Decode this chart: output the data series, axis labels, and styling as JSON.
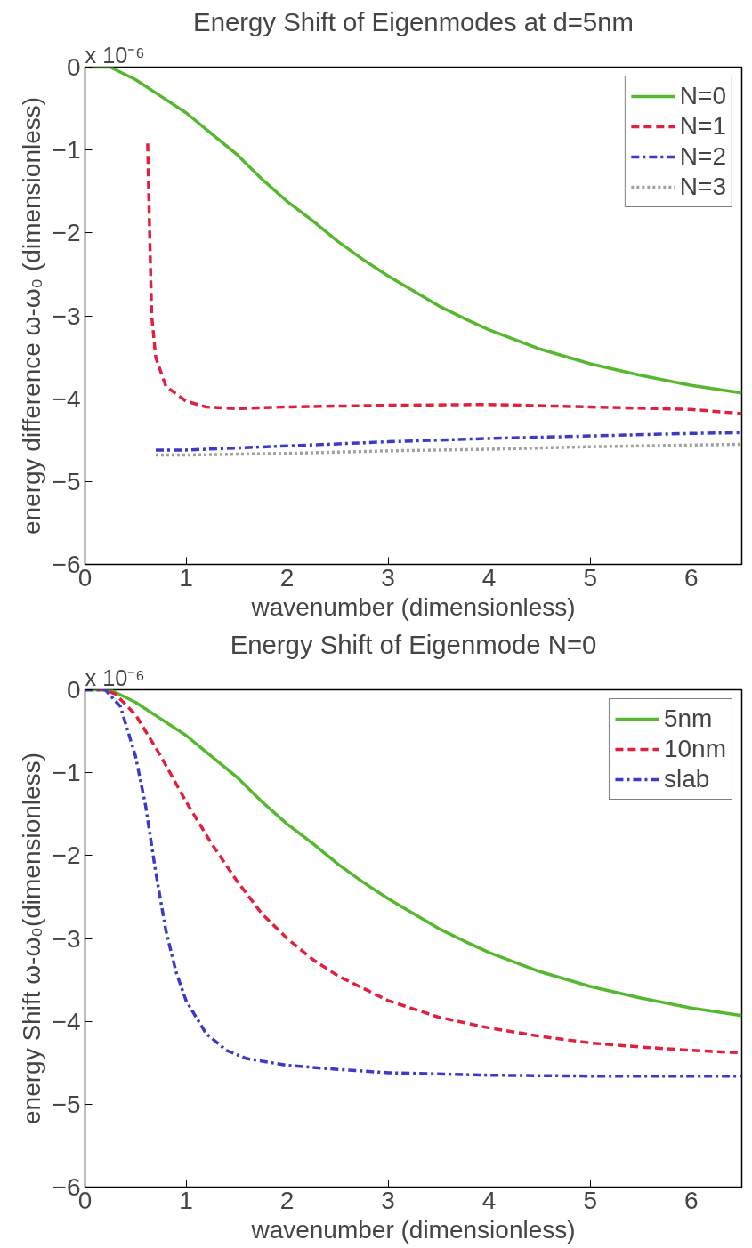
{
  "chart_data": [
    {
      "type": "line",
      "title": "Energy Shift of Eigenmodes at d=5nm",
      "xlabel": "wavenumber (dimensionless)",
      "ylabel": "energy difference ω-ω₀ (dimensionless)",
      "annotations": [
        "x 10⁻⁶"
      ],
      "xlim": [
        0,
        6.5
      ],
      "ylim": [
        -6,
        0
      ],
      "xticks": [
        0,
        1,
        2,
        3,
        4,
        5,
        6
      ],
      "yticks": [
        -6,
        -5,
        -4,
        -3,
        -2,
        -1,
        0
      ],
      "grid": false,
      "legend": "top right",
      "marker": "none",
      "series": [
        {
          "name": "N=0",
          "color": "#55b82e",
          "line_style": "solid",
          "x": [
            0,
            0.25,
            0.5,
            0.75,
            1,
            1.25,
            1.5,
            1.75,
            2,
            2.25,
            2.5,
            2.75,
            3,
            3.25,
            3.5,
            3.75,
            4,
            4.5,
            5,
            5.5,
            6,
            6.5
          ],
          "values": [
            0,
            0,
            -0.15,
            -0.35,
            -0.55,
            -0.8,
            -1.05,
            -1.35,
            -1.62,
            -1.85,
            -2.1,
            -2.32,
            -2.52,
            -2.7,
            -2.88,
            -3.03,
            -3.17,
            -3.4,
            -3.58,
            -3.72,
            -3.84,
            -3.93
          ]
        },
        {
          "name": "N=1",
          "color": "#e0203e",
          "line_style": "dashed",
          "x": [
            0.62,
            0.64,
            0.66,
            0.7,
            0.8,
            1.0,
            1.2,
            1.5,
            2,
            3,
            4,
            5,
            6,
            6.5
          ],
          "values": [
            -0.92,
            -2.0,
            -3.0,
            -3.5,
            -3.85,
            -4.03,
            -4.1,
            -4.12,
            -4.1,
            -4.08,
            -4.07,
            -4.1,
            -4.13,
            -4.18
          ]
        },
        {
          "name": "N=2",
          "color": "#3b3bc8",
          "line_style": "dashdot",
          "x": [
            0.7,
            1,
            2,
            3,
            4,
            5,
            6,
            6.5
          ],
          "values": [
            -4.62,
            -4.62,
            -4.57,
            -4.52,
            -4.48,
            -4.45,
            -4.42,
            -4.41
          ]
        },
        {
          "name": "N=3",
          "color": "#a0a0a0",
          "line_style": "dotted",
          "x": [
            0.7,
            1,
            2,
            3,
            4,
            5,
            6,
            6.5
          ],
          "values": [
            -4.68,
            -4.68,
            -4.66,
            -4.63,
            -4.61,
            -4.58,
            -4.56,
            -4.55
          ]
        }
      ]
    },
    {
      "type": "line",
      "title": "Energy Shift of Eigenmode N=0",
      "xlabel": "wavenumber (dimensionless)",
      "ylabel": "energy Shift ω-ω₀(dimensionless)",
      "annotations": [
        "x 10⁻⁶"
      ],
      "xlim": [
        0,
        6.5
      ],
      "ylim": [
        -6,
        0
      ],
      "xticks": [
        0,
        1,
        2,
        3,
        4,
        5,
        6
      ],
      "yticks": [
        -6,
        -5,
        -4,
        -3,
        -2,
        -1,
        0
      ],
      "grid": false,
      "legend": "top right",
      "marker": "none",
      "series": [
        {
          "name": "5nm",
          "color": "#55b82e",
          "line_style": "solid",
          "x": [
            0,
            0.25,
            0.5,
            0.75,
            1,
            1.25,
            1.5,
            1.75,
            2,
            2.25,
            2.5,
            2.75,
            3,
            3.25,
            3.5,
            3.75,
            4,
            4.5,
            5,
            5.5,
            6,
            6.5
          ],
          "values": [
            0,
            0,
            -0.15,
            -0.35,
            -0.55,
            -0.8,
            -1.05,
            -1.35,
            -1.62,
            -1.85,
            -2.1,
            -2.32,
            -2.52,
            -2.7,
            -2.88,
            -3.03,
            -3.17,
            -3.4,
            -3.58,
            -3.72,
            -3.84,
            -3.93
          ]
        },
        {
          "name": "10nm",
          "color": "#e0203e",
          "line_style": "dashed",
          "x": [
            0,
            0.2,
            0.3,
            0.5,
            0.75,
            1,
            1.25,
            1.5,
            1.75,
            2,
            2.25,
            2.5,
            3,
            3.5,
            4,
            4.5,
            5,
            5.5,
            6,
            6.5
          ],
          "values": [
            0,
            0,
            -0.05,
            -0.3,
            -0.8,
            -1.35,
            -1.85,
            -2.3,
            -2.7,
            -3.0,
            -3.25,
            -3.45,
            -3.75,
            -3.95,
            -4.08,
            -4.18,
            -4.26,
            -4.31,
            -4.35,
            -4.38
          ]
        },
        {
          "name": "slab",
          "color": "#3b3bc8",
          "line_style": "dashdot",
          "x": [
            0,
            0.2,
            0.35,
            0.5,
            0.6,
            0.7,
            0.8,
            0.9,
            1,
            1.2,
            1.4,
            1.6,
            2,
            2.5,
            3,
            4,
            5,
            6.5
          ],
          "values": [
            0,
            0,
            -0.2,
            -0.8,
            -1.4,
            -2.2,
            -2.9,
            -3.4,
            -3.75,
            -4.15,
            -4.35,
            -4.45,
            -4.53,
            -4.58,
            -4.62,
            -4.65,
            -4.66,
            -4.66
          ]
        }
      ]
    }
  ]
}
